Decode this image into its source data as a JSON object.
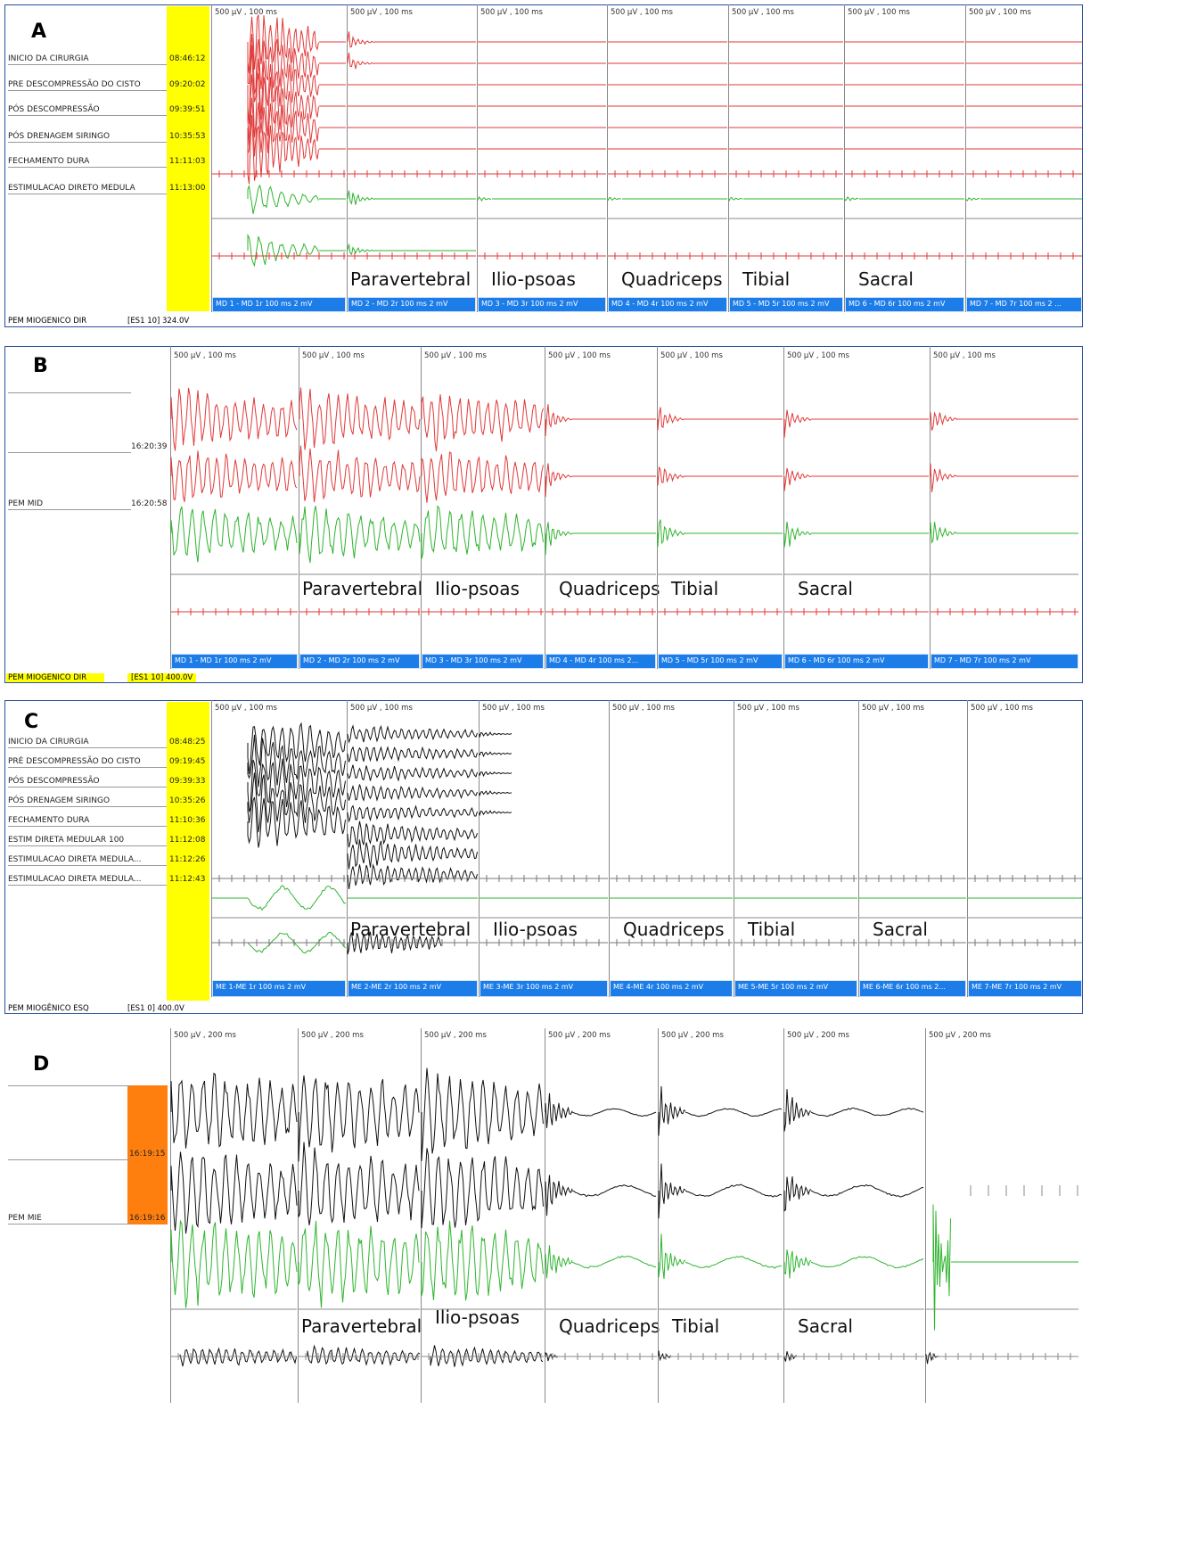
{
  "panels": {
    "A": {
      "letter": "A",
      "rows": [
        {
          "label": "INICIO DA CIRURGIA",
          "time": "08:46:12"
        },
        {
          "label": "PRE DESCOMPRESSÃO DO CISTO",
          "time": "09:20:02"
        },
        {
          "label": "PÓS DESCOMPRESSÃO",
          "time": "09:39:51"
        },
        {
          "label": "PÓS DRENAGEM SIRINGO",
          "time": "10:35:53"
        },
        {
          "label": "FECHAMENTO DURA",
          "time": "11:11:03"
        },
        {
          "label": "ESTIMULACAO DIRETO MEDULA",
          "time": "11:13:00"
        }
      ],
      "col_header": "500 µV , 100 ms",
      "footers": [
        "MD 1 - MD 1r 100 ms 2 mV",
        "MD 2 - MD 2r 100 ms 2 mV",
        "MD 3 - MD 3r 100 ms 2 mV",
        "MD 4 - MD 4r 100 ms 2 mV",
        "MD 5 - MD 5r 100 ms 2 mV",
        "MD 6 - MD 6r 100 ms 2 mV",
        "MD 7 - MD 7r 100 ms 2 ..."
      ],
      "status": [
        "PEM MIOGENICO DIR",
        "[ES1 10] 324.0V"
      ]
    },
    "B": {
      "letter": "B",
      "rows": [
        {
          "label": "",
          "time": "16:20:39"
        },
        {
          "label": "PEM MID",
          "time": "16:20:58"
        }
      ],
      "col_header": "500 µV , 100 ms",
      "footers": [
        "MD 1 - MD 1r 100 ms 2 mV",
        "MD 2 - MD 2r 100 ms 2 mV",
        "MD 3 - MD 3r 100 ms 2 mV",
        "MD 4 - MD 4r 100 ms 2...",
        "MD 5 - MD 5r 100 ms 2 mV",
        "MD 6 - MD 6r 100 ms 2 mV",
        "MD 7 - MD 7r 100 ms 2 mV"
      ],
      "status": [
        "PEM MIOGENICO DIR",
        "[ES1 10] 400.0V"
      ]
    },
    "C": {
      "letter": "C",
      "rows": [
        {
          "label": "INICIO DA CIRURGIA",
          "time": "08:48:25"
        },
        {
          "label": "PRÉ DESCOMPRESSÃO DO CISTO",
          "time": "09:19:45"
        },
        {
          "label": "PÓS DESCOMPRESSÃO",
          "time": "09:39:33"
        },
        {
          "label": "PÓS DRENAGEM SIRINGO",
          "time": "10:35:26"
        },
        {
          "label": "FECHAMENTO DURA",
          "time": "11:10:36"
        },
        {
          "label": "ESTIM DIRETA MEDULAR 100",
          "time": "11:12:08"
        },
        {
          "label": "ESTIMULACAO DIRETA MEDULA...",
          "time": "11:12:26"
        },
        {
          "label": "ESTIMULACAO DIRETA MEDULA...",
          "time": "11:12:43"
        }
      ],
      "col_header": "500 µV , 100 ms",
      "footers": [
        "ME 1-ME 1r 100 ms 2 mV",
        "ME 2-ME 2r 100 ms 2 mV",
        "ME 3-ME 3r 100 ms 2 mV",
        "ME 4-ME 4r 100 ms 2 mV",
        "ME 5-ME 5r 100 ms 2 mV",
        "ME 6-ME 6r 100 ms 2...",
        "ME 7-ME 7r 100 ms 2 mV"
      ],
      "status": [
        "PEM MIOGÊNICO ESQ",
        "[ES1 0] 400.0V"
      ]
    },
    "D": {
      "letter": "D",
      "rows": [
        {
          "label": "",
          "time": "16:19:15"
        },
        {
          "label": "PEM MIE",
          "time": "16:19:16"
        }
      ],
      "col_header": "500 µV , 200 ms",
      "footers": [],
      "status": []
    }
  },
  "muscles": [
    "Paravertebral",
    "Ilio-psoas",
    "Quadriceps",
    "Tibial",
    "Sacral"
  ],
  "colors": {
    "red": "#e03a3a",
    "green": "#2fb42f",
    "black": "#111111",
    "yellow": "#ffff00",
    "orange": "#ff7f0e",
    "footer": "#1c7ce8"
  }
}
